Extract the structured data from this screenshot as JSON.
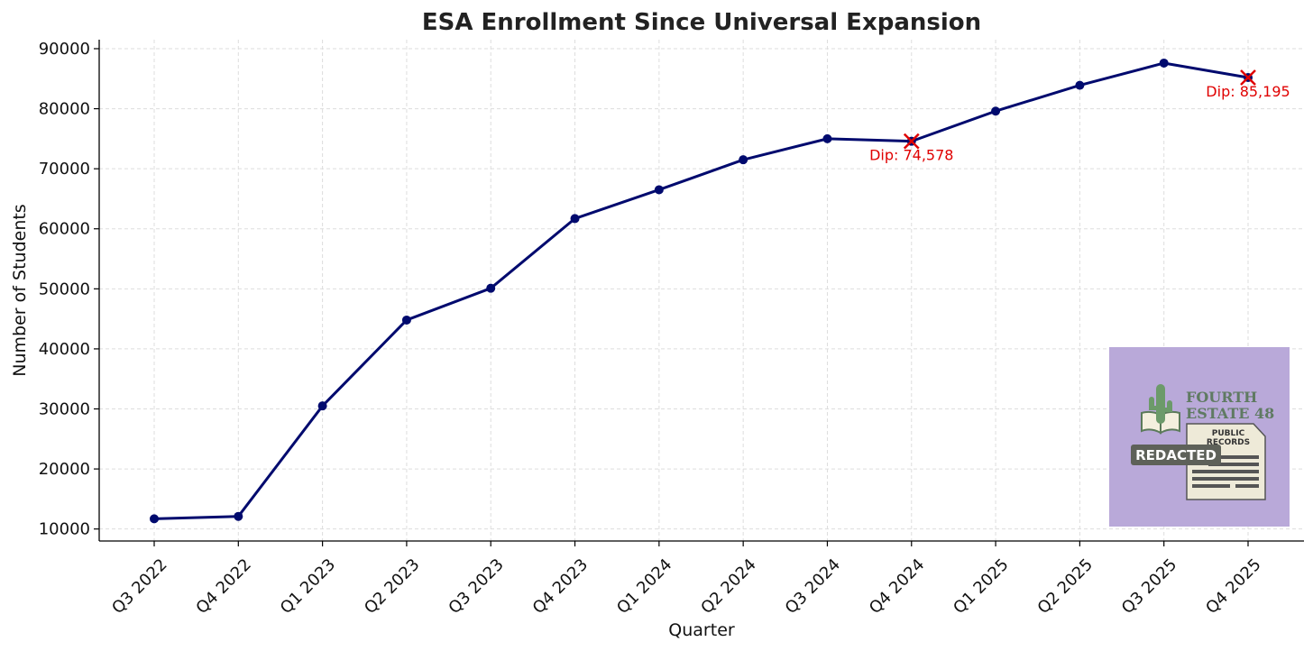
{
  "chart_data": {
    "type": "line",
    "title": "ESA Enrollment Since Universal Expansion",
    "xlabel": "Quarter",
    "ylabel": "Number of Students",
    "categories": [
      "Q3 2022",
      "Q4 2022",
      "Q1 2023",
      "Q2 2023",
      "Q3 2023",
      "Q4 2023",
      "Q1 2024",
      "Q2 2024",
      "Q3 2024",
      "Q4 2024",
      "Q1 2025",
      "Q2 2025",
      "Q3 2025",
      "Q4 2025"
    ],
    "series": [
      {
        "name": "ESA Enrollment",
        "color": "#000a6e",
        "values": [
          11700,
          12100,
          30500,
          44800,
          50100,
          61700,
          66500,
          71500,
          75000,
          74578,
          79600,
          83900,
          87600,
          85195
        ]
      }
    ],
    "ylim": [
      8000,
      91500
    ],
    "yticks": [
      10000,
      20000,
      30000,
      40000,
      50000,
      60000,
      70000,
      80000,
      90000
    ],
    "grid": true,
    "annotations": [
      {
        "category": "Q4 2024",
        "value": 74578,
        "text": "Dip: 74,578",
        "color": "#e00000"
      },
      {
        "category": "Q4 2025",
        "value": 85195,
        "text": "Dip: 85,195",
        "color": "#e00000"
      }
    ]
  },
  "logo": {
    "line1": "FOURTH",
    "line2": "ESTATE 48",
    "doc_line1": "PUBLIC",
    "doc_line2": "RECORDS",
    "badge": "REDACTED",
    "bg_color": "#b9a9d9"
  }
}
